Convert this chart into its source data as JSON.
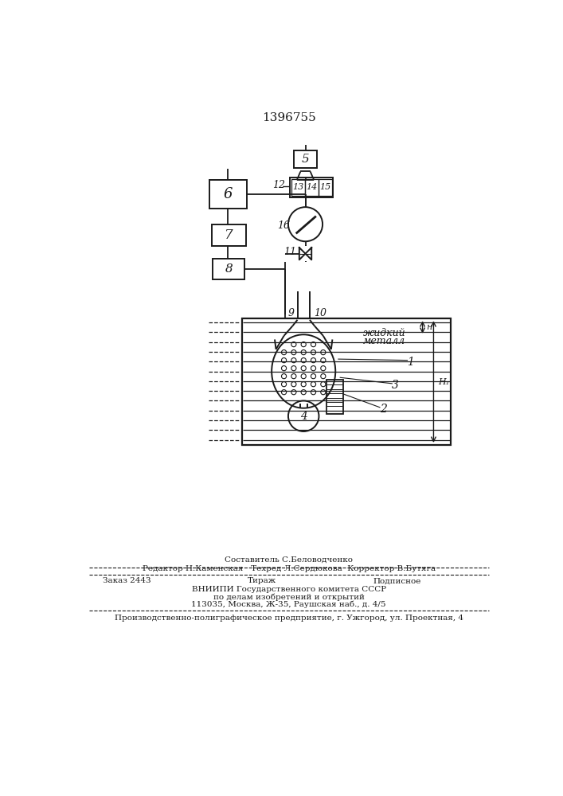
{
  "title": "1396755",
  "bg": "#ffffff",
  "lc": "#1a1a1a",
  "footer_line1": "Составитель С.Беловодченко",
  "footer_line2": "Редактор Н.Каменская   Техред Л.Сердюкова  Корректор В.Бутяга",
  "footer_line3": "Заказ 2443             Тираж                   Подписное",
  "footer_line4": "ВНИИПИ Государственного комитета СССР",
  "footer_line5": "по делам изобретений и открытий",
  "footer_line6": "113035, Москва, Ж-35, Раушская наб., д. 4/5",
  "footer_line7": "Производственно-полиграфическое предприятие, г. Ужгород, ул. Проектная, 4"
}
